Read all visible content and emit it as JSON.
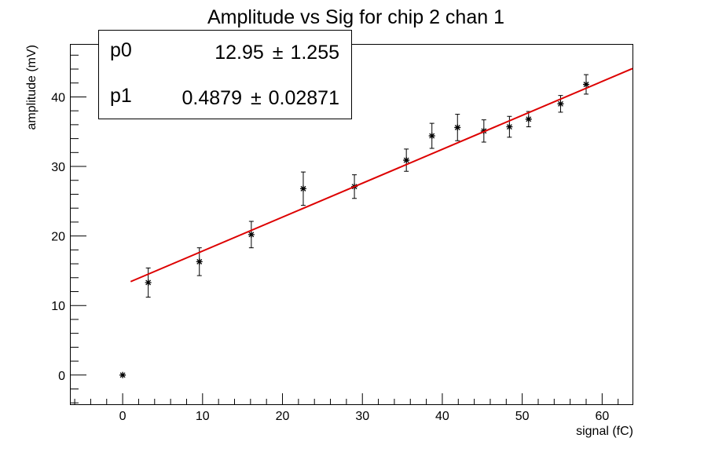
{
  "chart_data": {
    "type": "scatter",
    "title": "Amplitude vs Sig for chip 2 chan 1",
    "xlabel": "signal (fC)",
    "ylabel": "amplitude (mV)",
    "xlim": [
      -6.5,
      63.8
    ],
    "ylim": [
      -4.2,
      47.5
    ],
    "xticks": [
      0,
      10,
      20,
      30,
      40,
      50,
      60
    ],
    "yticks": [
      0,
      10,
      20,
      30,
      40
    ],
    "grid": false,
    "points": [
      {
        "x": 0.0,
        "y": 0.0,
        "err": 0.0
      },
      {
        "x": 3.2,
        "y": 13.3,
        "err": 2.1
      },
      {
        "x": 9.6,
        "y": 16.3,
        "err": 2.0
      },
      {
        "x": 16.1,
        "y": 20.2,
        "err": 1.9
      },
      {
        "x": 22.6,
        "y": 26.8,
        "err": 2.4
      },
      {
        "x": 29.0,
        "y": 27.1,
        "err": 1.7
      },
      {
        "x": 35.5,
        "y": 30.9,
        "err": 1.6
      },
      {
        "x": 38.7,
        "y": 34.4,
        "err": 1.8
      },
      {
        "x": 41.9,
        "y": 35.6,
        "err": 1.9
      },
      {
        "x": 45.2,
        "y": 35.1,
        "err": 1.6
      },
      {
        "x": 48.4,
        "y": 35.7,
        "err": 1.5
      },
      {
        "x": 50.8,
        "y": 36.8,
        "err": 1.1
      },
      {
        "x": 54.8,
        "y": 39.0,
        "err": 1.2
      },
      {
        "x": 58.0,
        "y": 41.8,
        "err": 1.4
      }
    ],
    "fit": {
      "p0": 12.95,
      "p1": 0.4879,
      "x_range": [
        1.0,
        63.8
      ],
      "color": "#dd0000"
    },
    "stats": [
      {
        "name": "p0",
        "value": "12.95",
        "error": "1.255"
      },
      {
        "name": "p1",
        "value": "0.4879",
        "error": "0.02871"
      }
    ],
    "pm_symbol": "±"
  }
}
